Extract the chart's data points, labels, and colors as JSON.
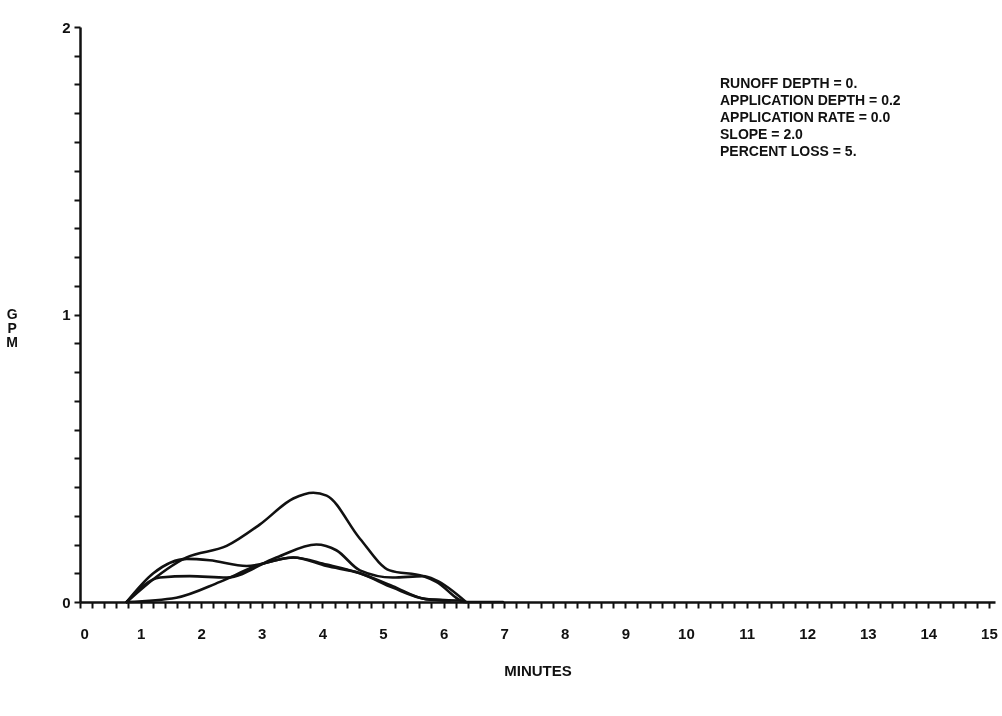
{
  "chart_data": {
    "type": "line",
    "xlabel": "MINUTES",
    "ylabel": "GPM",
    "xlim": [
      0,
      15.1
    ],
    "ylim": [
      0,
      2
    ],
    "xticks": [
      0,
      {
        "value": 0.2,
        "label": null
      },
      {
        "value": 0.4,
        "label": null
      },
      {
        "value": 0.6,
        "label": null
      },
      {
        "value": 0.8,
        "label": null
      },
      1,
      {
        "value": 1.2,
        "label": null
      },
      {
        "value": 1.4,
        "label": null
      },
      {
        "value": 1.6,
        "label": null
      },
      {
        "value": 1.8,
        "label": null
      },
      2,
      {
        "value": 2.2,
        "label": null
      },
      {
        "value": 2.4,
        "label": null
      },
      {
        "value": 2.6,
        "label": null
      },
      {
        "value": 2.8,
        "label": null
      },
      3,
      {
        "value": 3.2,
        "label": null
      },
      {
        "value": 3.4,
        "label": null
      },
      {
        "value": 3.6,
        "label": null
      },
      {
        "value": 3.8,
        "label": null
      },
      4,
      {
        "value": 4.2,
        "label": null
      },
      {
        "value": 4.4,
        "label": null
      },
      {
        "value": 4.6,
        "label": null
      },
      {
        "value": 4.8,
        "label": null
      },
      5,
      {
        "value": 5.2,
        "label": null
      },
      {
        "value": 5.4,
        "label": null
      },
      {
        "value": 5.6,
        "label": null
      },
      {
        "value": 5.8,
        "label": null
      },
      6,
      {
        "value": 6.2,
        "label": null
      },
      {
        "value": 6.4,
        "label": null
      },
      {
        "value": 6.6,
        "label": null
      },
      {
        "value": 6.8,
        "label": null
      },
      7,
      {
        "value": 7.2,
        "label": null
      },
      {
        "value": 7.4,
        "label": null
      },
      {
        "value": 7.6,
        "label": null
      },
      {
        "value": 7.8,
        "label": null
      },
      8,
      {
        "value": 8.2,
        "label": null
      },
      {
        "value": 8.4,
        "label": null
      },
      {
        "value": 8.6,
        "label": null
      },
      {
        "value": 8.8,
        "label": null
      },
      9,
      {
        "value": 9.2,
        "label": null
      },
      {
        "value": 9.4,
        "label": null
      },
      {
        "value": 9.6,
        "label": null
      },
      {
        "value": 9.8,
        "label": null
      },
      10,
      {
        "value": 10.2,
        "label": null
      },
      {
        "value": 10.4,
        "label": null
      },
      {
        "value": 10.6,
        "label": null
      },
      {
        "value": 10.8,
        "label": null
      },
      11,
      {
        "value": 11.2,
        "label": null
      },
      {
        "value": 11.4,
        "label": null
      },
      {
        "value": 11.6,
        "label": null
      },
      {
        "value": 11.8,
        "label": null
      },
      12,
      {
        "value": 12.2,
        "label": null
      },
      {
        "value": 12.4,
        "label": null
      },
      {
        "value": 12.6,
        "label": null
      },
      {
        "value": 12.8,
        "label": null
      },
      13,
      {
        "value": 13.2,
        "label": null
      },
      {
        "value": 13.4,
        "label": null
      },
      {
        "value": 13.6,
        "label": null
      },
      {
        "value": 13.8,
        "label": null
      },
      14,
      {
        "value": 14.2,
        "label": null
      },
      {
        "value": 14.4,
        "label": null
      },
      {
        "value": 14.6,
        "label": null
      },
      {
        "value": 14.8,
        "label": null
      },
      15
    ],
    "yticks": [
      0,
      {
        "value": 0.1,
        "label": null
      },
      {
        "value": 0.2,
        "label": null
      },
      {
        "value": 0.3,
        "label": null
      },
      {
        "value": 0.4,
        "label": null
      },
      {
        "value": 0.5,
        "label": null
      },
      {
        "value": 0.6,
        "label": null
      },
      {
        "value": 0.7,
        "label": null
      },
      {
        "value": 0.8,
        "label": null
      },
      {
        "value": 0.9,
        "label": null
      },
      1,
      {
        "value": 1.1,
        "label": null
      },
      {
        "value": 1.2,
        "label": null
      },
      {
        "value": 1.3,
        "label": null
      },
      {
        "value": 1.4,
        "label": null
      },
      {
        "value": 1.5,
        "label": null
      },
      {
        "value": 1.6,
        "label": null
      },
      {
        "value": 1.7,
        "label": null
      },
      {
        "value": 1.8,
        "label": null
      },
      {
        "value": 1.9,
        "label": null
      },
      2
    ],
    "grid": false,
    "legend": false,
    "annotations": [
      "RUNOFF DEPTH = 0.",
      "APPLICATION DEPTH = 0.2",
      "APPLICATION RATE = 0.0",
      "SLOPE = 2.0",
      "PERCENT LOSS = 5."
    ],
    "series": [
      {
        "color": "#111111",
        "x": [
          0.77,
          1.04,
          1.76,
          2.42,
          2.97,
          3.52,
          3.85,
          4.07,
          4.62,
          5.11,
          5.66,
          5.88,
          6.37,
          6.98
        ],
        "values": [
          0,
          0.05,
          0.155,
          0.195,
          0.27,
          0.36,
          0.38,
          0.37,
          0.22,
          0.11,
          0.09,
          0.07,
          0,
          0
        ]
      },
      {
        "color": "#111111",
        "x": [
          0.77,
          1.32,
          1.81,
          2.42,
          3.24,
          3.9,
          4.23,
          4.62,
          5.16,
          5.66,
          5.88,
          6.37
        ],
        "values": [
          0,
          0.085,
          0.09,
          0.085,
          0.155,
          0.2,
          0.18,
          0.11,
          0.085,
          0.09,
          0.075,
          0
        ]
      },
      {
        "color": "#111111",
        "x": [
          0.77,
          1.21,
          1.76,
          2.14,
          2.75,
          3.52,
          4.07,
          4.62,
          5.16,
          5.71,
          6.26
        ],
        "values": [
          0,
          0.1,
          0.15,
          0.145,
          0.125,
          0.155,
          0.13,
          0.1,
          0.055,
          0.01,
          0.005
        ]
      },
      {
        "color": "#111111",
        "x": [
          0.77,
          1.59,
          2.31,
          2.97,
          3.52,
          4.07,
          4.62,
          5.16,
          5.71,
          6.1
        ],
        "values": [
          0,
          0.015,
          0.07,
          0.13,
          0.155,
          0.125,
          0.1,
          0.05,
          0.01,
          0.005
        ]
      }
    ]
  }
}
